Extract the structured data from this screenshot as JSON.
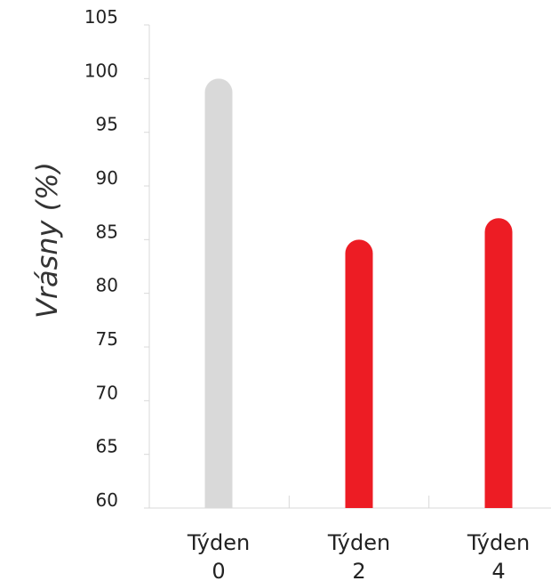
{
  "chart_data": {
    "type": "bar",
    "title": "",
    "xlabel": "",
    "ylabel": "Vrásny (%)",
    "ylim": [
      60,
      105
    ],
    "yticks": [
      60,
      65,
      70,
      75,
      80,
      85,
      90,
      95,
      100,
      105
    ],
    "grid": false,
    "categories": [
      [
        "Týden",
        "0"
      ],
      [
        "Týden",
        "2"
      ],
      [
        "Týden",
        "4"
      ]
    ],
    "values": [
      100,
      85,
      87
    ],
    "bar_colors": [
      "#d9d9d9",
      "#ed1c24",
      "#ed1c24"
    ]
  }
}
